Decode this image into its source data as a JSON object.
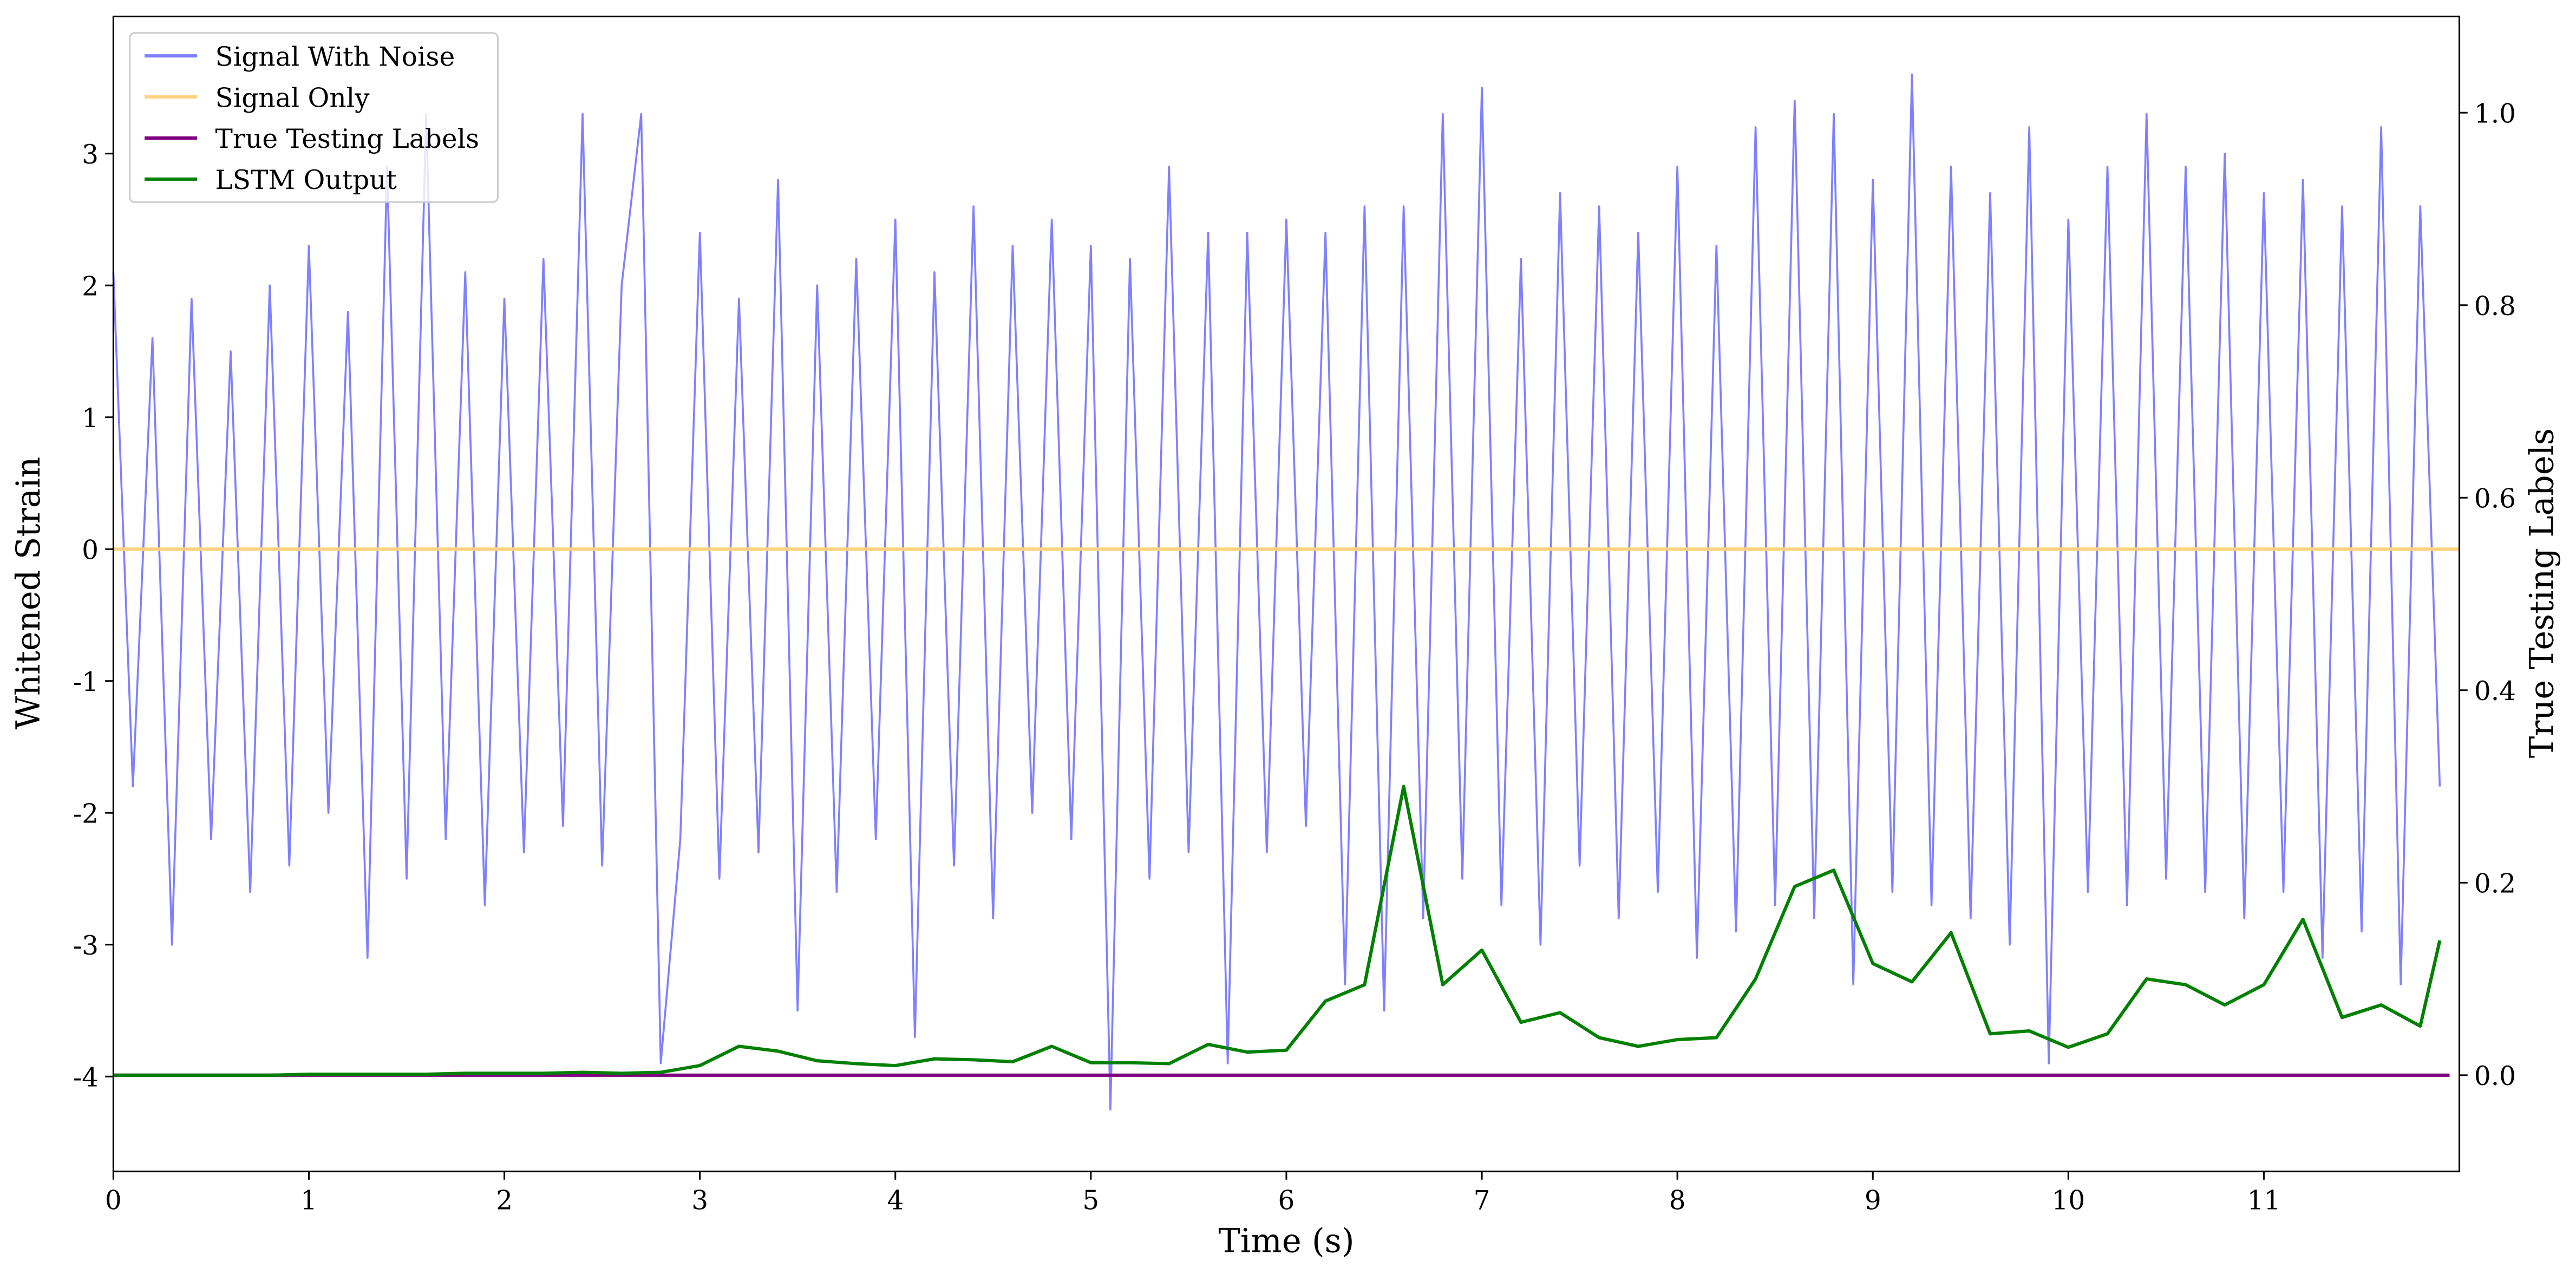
{
  "chart_data": {
    "type": "line",
    "xlabel": "Time (s)",
    "ylabel": "Whitened Strain",
    "y2label": "True Testing Labels",
    "xlim": [
      0,
      12
    ],
    "xticks": [
      0,
      1,
      2,
      3,
      4,
      5,
      6,
      7,
      8,
      9,
      10,
      11
    ],
    "ylim": [
      -4.72,
      4.04
    ],
    "yticks": [
      -4,
      -3,
      -2,
      -1,
      0,
      1,
      2,
      3
    ],
    "y2lim": [
      -0.1,
      1.1
    ],
    "y2ticks": [
      {
        "value": 0.0,
        "label": "0.0"
      },
      {
        "value": 0.2,
        "label": "0.2"
      },
      {
        "value": 0.4,
        "label": "0.4"
      },
      {
        "value": 0.6,
        "label": "0.6"
      },
      {
        "value": 0.8,
        "label": "0.8"
      },
      {
        "value": 1.0,
        "label": "1.0"
      }
    ],
    "legend": "upper left",
    "series": [
      {
        "name": "Signal With Noise",
        "color": "#8080ff",
        "x": [
          0,
          0.1,
          0.2,
          0.3,
          0.4,
          0.5,
          0.6,
          0.7,
          0.8,
          0.9,
          1,
          1.1,
          1.2,
          1.3,
          1.4,
          1.5,
          1.6,
          1.7,
          1.8,
          1.9,
          2,
          2.1,
          2.2,
          2.3,
          2.4,
          2.5,
          2.6,
          2.7,
          2.8,
          2.9,
          3,
          3.1,
          3.2,
          3.3,
          3.4,
          3.5,
          3.6,
          3.7,
          3.8,
          3.9,
          4,
          4.1,
          4.2,
          4.3,
          4.4,
          4.5,
          4.6,
          4.7,
          4.8,
          4.9,
          5,
          5.1,
          5.2,
          5.3,
          5.4,
          5.5,
          5.6,
          5.7,
          5.8,
          5.9,
          6,
          6.1,
          6.2,
          6.3,
          6.4,
          6.5,
          6.6,
          6.7,
          6.8,
          6.9,
          7,
          7.1,
          7.2,
          7.3,
          7.4,
          7.5,
          7.6,
          7.7,
          7.8,
          7.9,
          8,
          8.1,
          8.2,
          8.3,
          8.4,
          8.5,
          8.6,
          8.7,
          8.8,
          8.9,
          9,
          9.1,
          9.2,
          9.3,
          9.4,
          9.5,
          9.6,
          9.7,
          9.8,
          9.9,
          10,
          10.1,
          10.2,
          10.3,
          10.4,
          10.5,
          10.6,
          10.7,
          10.8,
          10.9,
          11,
          11.1,
          11.2,
          11.3,
          11.4,
          11.5,
          11.6,
          11.7,
          11.8,
          11.9
        ],
        "values": [
          2.1,
          -1.8,
          1.6,
          -3.0,
          1.9,
          -2.2,
          1.5,
          -2.6,
          2.0,
          -2.4,
          2.3,
          -2.0,
          1.8,
          -3.1,
          2.9,
          -2.5,
          3.3,
          -2.2,
          2.1,
          -2.7,
          1.9,
          -2.3,
          2.2,
          -2.1,
          3.3,
          -2.4,
          2.0,
          3.3,
          -3.9,
          -2.2,
          2.4,
          -2.5,
          1.9,
          -2.3,
          2.8,
          -3.5,
          2.0,
          -2.6,
          2.2,
          -2.2,
          2.5,
          -3.7,
          2.1,
          -2.4,
          2.6,
          -2.8,
          2.3,
          -2.0,
          2.5,
          -2.2,
          2.3,
          -4.25,
          2.2,
          -2.5,
          2.9,
          -2.3,
          2.4,
          -3.9,
          2.4,
          -2.3,
          2.5,
          -2.1,
          2.4,
          -3.3,
          2.6,
          -3.5,
          2.6,
          -2.8,
          3.3,
          -2.5,
          3.5,
          -2.7,
          2.2,
          -3.0,
          2.7,
          -2.4,
          2.6,
          -2.8,
          2.4,
          -2.6,
          2.9,
          -3.1,
          2.3,
          -2.9,
          3.2,
          -2.7,
          3.4,
          -2.8,
          3.3,
          -3.3,
          2.8,
          -2.6,
          3.6,
          -2.7,
          2.9,
          -2.8,
          2.7,
          -3.0,
          3.2,
          -3.9,
          2.5,
          -2.6,
          2.9,
          -2.7,
          3.3,
          -2.5,
          2.9,
          -2.6,
          3.0,
          -2.8,
          2.7,
          -2.6,
          2.8,
          -3.1,
          2.6,
          -2.9,
          3.2,
          -3.3,
          2.6,
          -1.8
        ]
      },
      {
        "name": "Signal Only",
        "color": "#ffd280",
        "x": [
          0,
          12
        ],
        "values": [
          0,
          0
        ]
      },
      {
        "name": "True Testing Labels",
        "color": "#800080",
        "axis": "y2",
        "x": [
          0,
          11.95
        ],
        "values": [
          0,
          0
        ]
      },
      {
        "name": "LSTM Output",
        "color": "#008000",
        "axis": "y2",
        "x": [
          0,
          0.2,
          0.4,
          0.6,
          0.8,
          1,
          1.2,
          1.4,
          1.6,
          1.8,
          2,
          2.2,
          2.4,
          2.6,
          2.8,
          3,
          3.2,
          3.4,
          3.6,
          3.8,
          4,
          4.2,
          4.4,
          4.6,
          4.8,
          5,
          5.2,
          5.4,
          5.6,
          5.8,
          6,
          6.2,
          6.4,
          6.6,
          6.8,
          7,
          7.2,
          7.4,
          7.6,
          7.8,
          8,
          8.2,
          8.4,
          8.6,
          8.8,
          9,
          9.2,
          9.4,
          9.6,
          9.8,
          10,
          10.2,
          10.4,
          10.6,
          10.8,
          11,
          11.2,
          11.4,
          11.6,
          11.8,
          11.9
        ],
        "values": [
          0,
          0,
          0,
          0,
          0,
          0.001,
          0.001,
          0.001,
          0.001,
          0.002,
          0.002,
          0.002,
          0.003,
          0.002,
          0.003,
          0.01,
          0.03,
          0.025,
          0.015,
          0.012,
          0.01,
          0.017,
          0.016,
          0.014,
          0.03,
          0.013,
          0.013,
          0.012,
          0.032,
          0.024,
          0.026,
          0.077,
          0.094,
          0.3,
          0.094,
          0.13,
          0.055,
          0.065,
          0.039,
          0.03,
          0.037,
          0.039,
          0.1,
          0.196,
          0.213,
          0.116,
          0.097,
          0.148,
          0.043,
          0.046,
          0.029,
          0.043,
          0.1,
          0.094,
          0.073,
          0.094,
          0.162,
          0.06,
          0.073,
          0.051,
          0.14
        ]
      }
    ]
  }
}
